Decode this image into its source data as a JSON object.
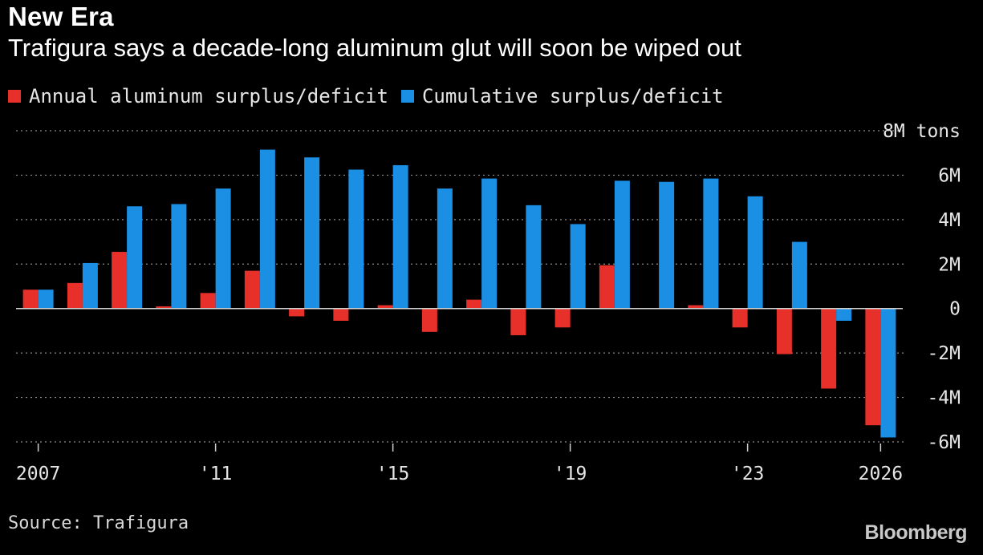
{
  "header": {
    "title": "New Era",
    "subtitle": "Trafigura says a decade-long aluminum glut will soon be wiped out"
  },
  "legend": [
    {
      "label": "Annual aluminum surplus/deficit",
      "color": "#e8302a"
    },
    {
      "label": "Cumulative surplus/deficit",
      "color": "#1a8fe3"
    }
  ],
  "footer": {
    "source": "Source: Trafigura",
    "brand": "Bloomberg"
  },
  "chart_data": {
    "type": "bar",
    "categories": [
      "2007",
      "2008",
      "2009",
      "2010",
      "2011",
      "2012",
      "2013",
      "2014",
      "2015",
      "2016",
      "2017",
      "2018",
      "2019",
      "2020",
      "2021",
      "2022",
      "2023",
      "2024",
      "2025",
      "2026"
    ],
    "x_tick_labels": [
      {
        "category": "2007",
        "label": "2007"
      },
      {
        "category": "2011",
        "label": "'11"
      },
      {
        "category": "2015",
        "label": "'15"
      },
      {
        "category": "2019",
        "label": "'19"
      },
      {
        "category": "2023",
        "label": "'23"
      },
      {
        "category": "2026",
        "label": "2026"
      }
    ],
    "y_ticks": [
      {
        "value": 8,
        "label": "8M tons"
      },
      {
        "value": 6,
        "label": "6M"
      },
      {
        "value": 4,
        "label": "4M"
      },
      {
        "value": 2,
        "label": "2M"
      },
      {
        "value": 0,
        "label": "0"
      },
      {
        "value": -2,
        "label": "-2M"
      },
      {
        "value": -4,
        "label": "-4M"
      },
      {
        "value": -6,
        "label": "-6M"
      }
    ],
    "ylim": [
      -6,
      8
    ],
    "series": [
      {
        "name": "Annual aluminum surplus/deficit",
        "color": "#e8302a",
        "values": [
          0.85,
          1.15,
          2.55,
          0.1,
          0.7,
          1.7,
          -0.35,
          -0.55,
          0.15,
          -1.05,
          0.4,
          -1.2,
          -0.85,
          1.95,
          0.02,
          0.15,
          -0.85,
          -2.05,
          -3.6,
          -5.25
        ]
      },
      {
        "name": "Cumulative surplus/deficit",
        "color": "#1a8fe3",
        "values": [
          0.85,
          2.05,
          4.6,
          4.7,
          5.4,
          7.15,
          6.8,
          6.25,
          6.45,
          5.4,
          5.85,
          4.65,
          3.8,
          5.75,
          5.7,
          5.85,
          5.05,
          3.0,
          -0.55,
          -5.8
        ]
      }
    ],
    "grid": true,
    "legend_position": "top-left"
  }
}
